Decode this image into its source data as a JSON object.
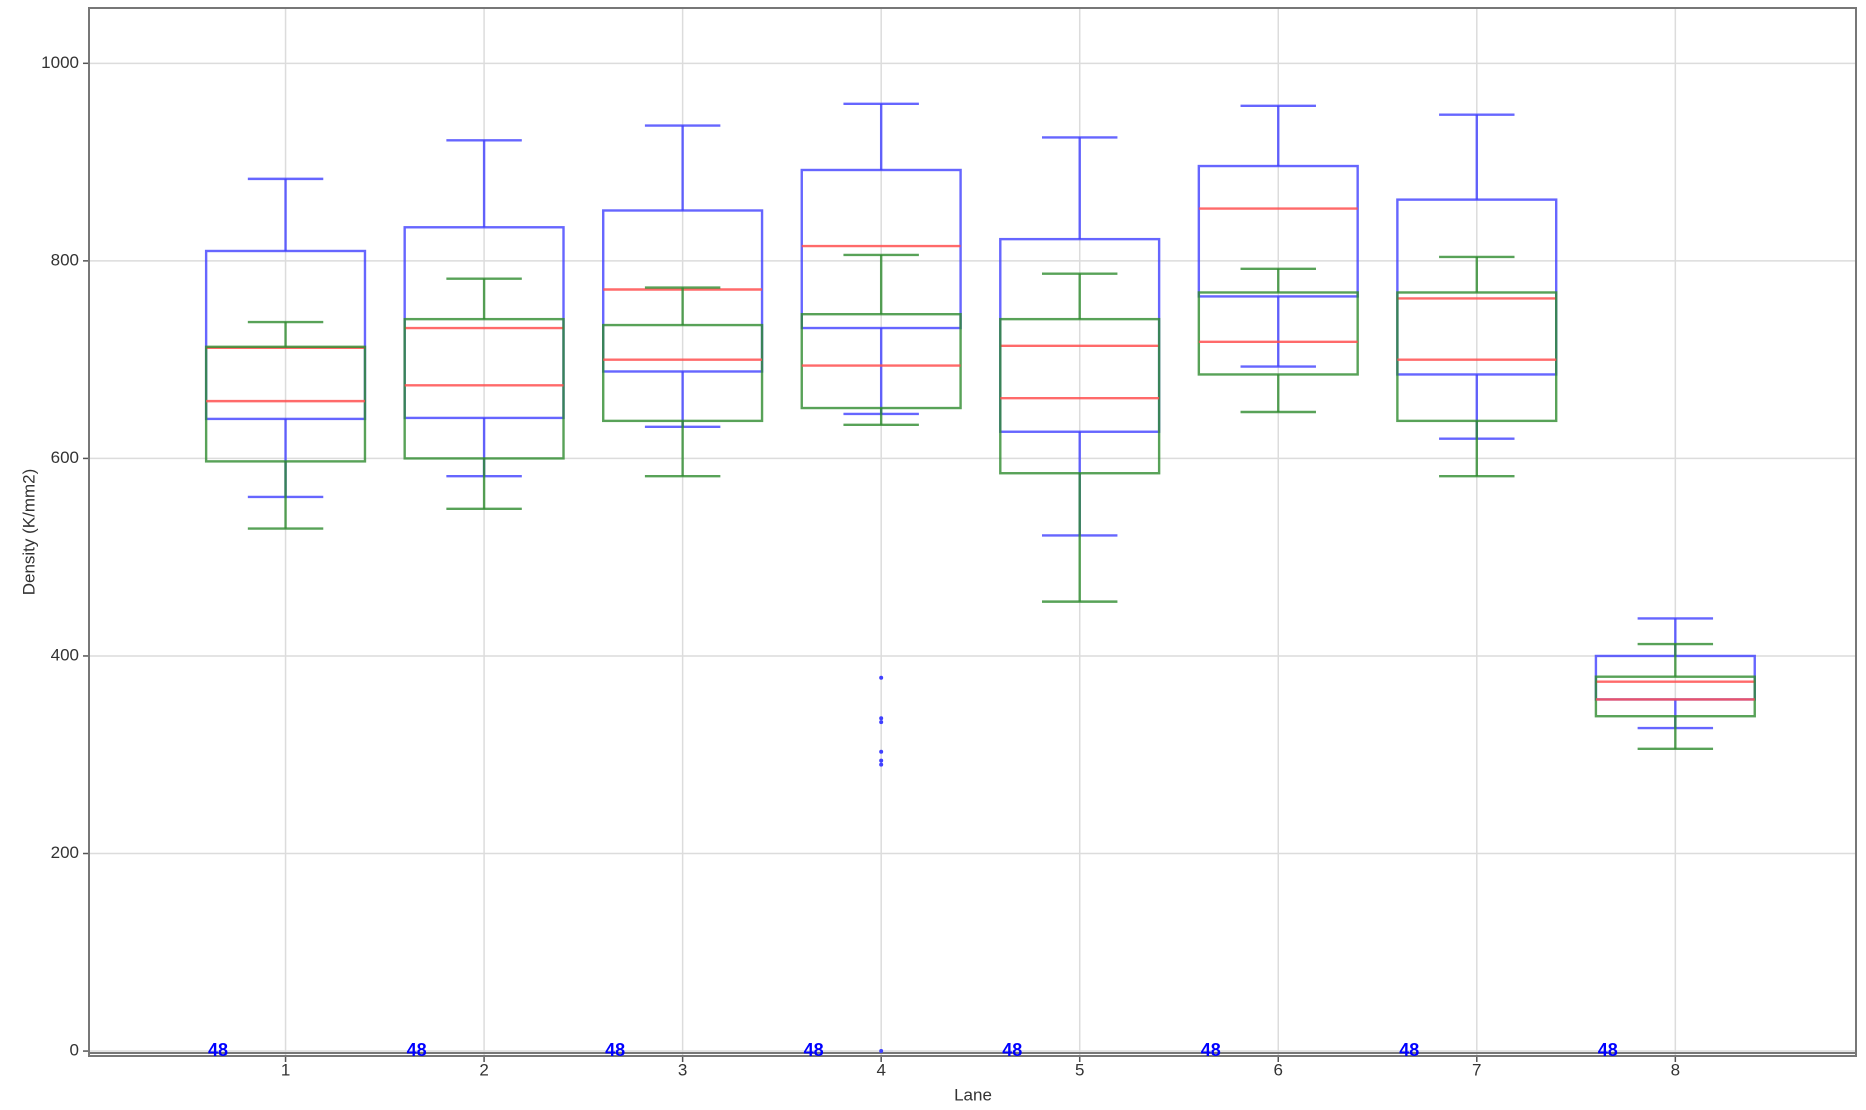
{
  "chart_data": {
    "type": "box",
    "xlabel": "Lane",
    "ylabel": "Density (K/mm2)",
    "categories": [
      1,
      2,
      3,
      4,
      5,
      6,
      7,
      8
    ],
    "xticks": [
      1,
      2,
      3,
      4,
      5,
      6,
      7,
      8
    ],
    "xlim": [
      0.01,
      8.91
    ],
    "ylim": [
      -5,
      1056
    ],
    "yticks": [
      0,
      200,
      400,
      600,
      800,
      1000
    ],
    "grid": true,
    "median_color": "#ff5050",
    "series": [
      {
        "color": "#4040ff",
        "whislo": [
          561,
          582,
          632,
          645,
          522,
          693,
          620,
          327
        ],
        "q1": [
          640,
          641,
          688,
          732,
          627,
          764,
          685,
          356
        ],
        "med": [
          712,
          732,
          771,
          815,
          714,
          853,
          762,
          374
        ],
        "q3": [
          810,
          834,
          851,
          892,
          822,
          896,
          862,
          400
        ],
        "whishi": [
          883,
          922,
          937,
          959,
          925,
          957,
          948,
          438
        ],
        "outliers": [
          [],
          [],
          [],
          [
            378,
            337,
            333,
            303,
            294,
            290,
            0
          ],
          [],
          [],
          [],
          []
        ]
      },
      {
        "color": "#2e8b2e",
        "whislo": [
          529,
          549,
          582,
          634,
          455,
          647,
          582,
          306
        ],
        "q1": [
          597,
          600,
          638,
          651,
          585,
          685,
          638,
          339
        ],
        "med": [
          658,
          674,
          700,
          694,
          661,
          718,
          700,
          356
        ],
        "q3": [
          713,
          741,
          735,
          746,
          741,
          768,
          768,
          379
        ],
        "whishi": [
          738,
          782,
          773,
          806,
          787,
          792,
          804,
          412
        ],
        "outliers": [
          [],
          [],
          [],
          [],
          [],
          [],
          [],
          []
        ]
      }
    ],
    "count_labels": [
      48,
      48,
      48,
      48,
      48,
      48,
      48,
      48
    ],
    "count_color": "#0000ff"
  }
}
